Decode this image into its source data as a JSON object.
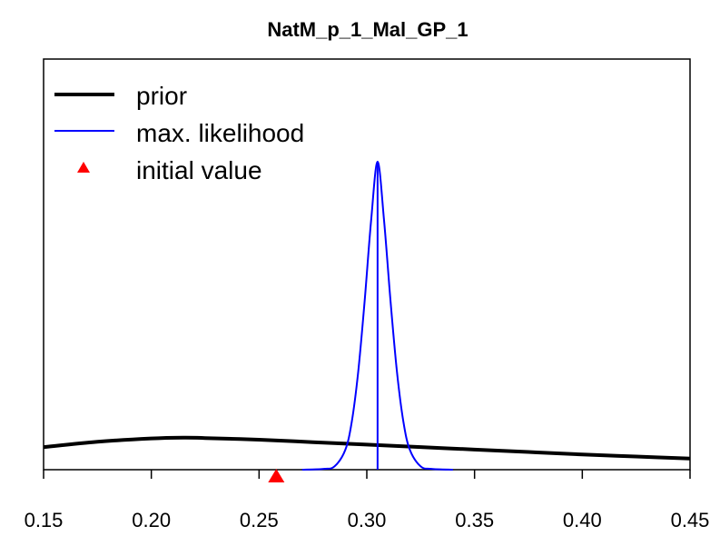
{
  "chart_data": {
    "type": "line",
    "title": "NatM_p_1_Mal_GP_1",
    "xlabel": "",
    "ylabel": "",
    "xlim": [
      0.15,
      0.45
    ],
    "ylim": [
      0,
      1
    ],
    "x_ticks": [
      "0.15",
      "0.20",
      "0.25",
      "0.30",
      "0.35",
      "0.40",
      "0.45"
    ],
    "legend_position": "top-left",
    "legend": [
      {
        "label": "prior",
        "kind": "thick-line",
        "color": "#000000"
      },
      {
        "label": "max. likelihood",
        "kind": "line",
        "color": "#0000ff"
      },
      {
        "label": "initial value",
        "kind": "triangle",
        "color": "#ff0000"
      }
    ],
    "series": [
      {
        "name": "prior",
        "color": "#000000",
        "x": [
          0.15,
          0.175,
          0.2,
          0.215,
          0.225,
          0.25,
          0.275,
          0.3,
          0.325,
          0.35,
          0.375,
          0.4,
          0.425,
          0.45
        ],
        "y": [
          0.055,
          0.068,
          0.076,
          0.078,
          0.077,
          0.073,
          0.067,
          0.061,
          0.055,
          0.049,
          0.043,
          0.037,
          0.032,
          0.027
        ]
      },
      {
        "name": "max. likelihood",
        "color": "#0000ff",
        "x": [
          0.27,
          0.28,
          0.285,
          0.29,
          0.293,
          0.296,
          0.299,
          0.302,
          0.305,
          0.308,
          0.311,
          0.314,
          0.317,
          0.32,
          0.325,
          0.33,
          0.34
        ],
        "y": [
          0.0,
          0.002,
          0.008,
          0.048,
          0.116,
          0.238,
          0.411,
          0.607,
          0.75,
          0.607,
          0.411,
          0.238,
          0.116,
          0.048,
          0.008,
          0.002,
          0.0
        ]
      }
    ],
    "max_likelihood_estimate": 0.305,
    "initial_value": 0.258
  }
}
